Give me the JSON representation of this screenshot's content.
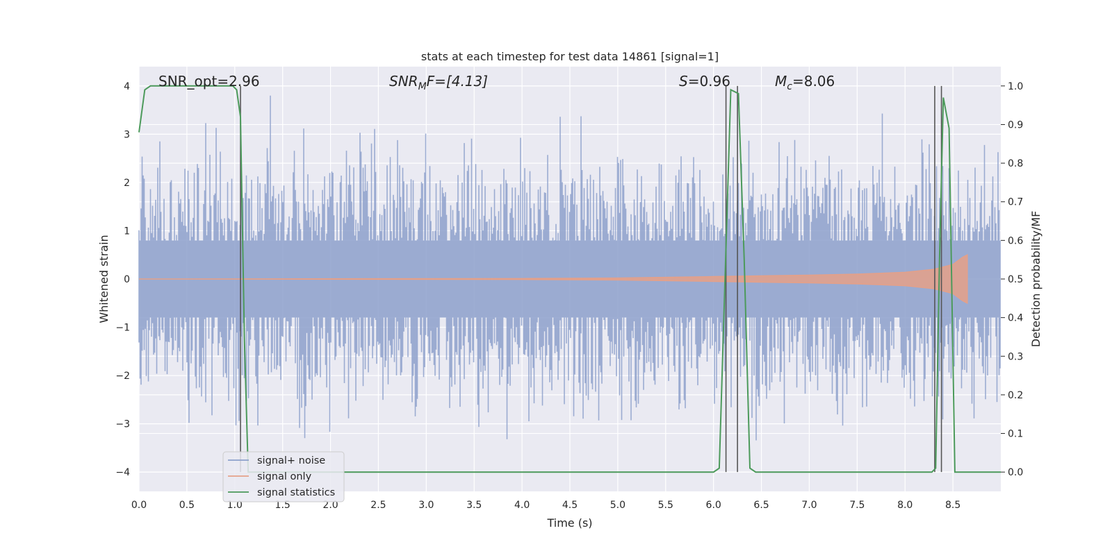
{
  "chart_data": {
    "type": "line",
    "title": "stats at each timestep for test data 14861 [signal=1]",
    "xlabel": "Time (s)",
    "ylabel_left": "Whitened strain",
    "ylabel_right": "Detection probability/MF",
    "xlim": [
      0.0,
      9.0
    ],
    "ylim_left": [
      -4.4,
      4.4
    ],
    "ylim_right": [
      -0.05,
      1.05
    ],
    "x_ticks": [
      0.0,
      0.5,
      1.0,
      1.5,
      2.0,
      2.5,
      3.0,
      3.5,
      4.0,
      4.5,
      5.0,
      5.5,
      6.0,
      6.5,
      7.0,
      7.5,
      8.0,
      8.5
    ],
    "x_tick_labels": [
      "0.0",
      "0.5",
      "1.0",
      "1.5",
      "2.0",
      "2.5",
      "3.0",
      "3.5",
      "4.0",
      "4.5",
      "5.0",
      "5.5",
      "6.0",
      "6.5",
      "7.0",
      "7.5",
      "8.0",
      "8.5"
    ],
    "y_left_ticks": [
      -4,
      -3,
      -2,
      -1,
      0,
      1,
      2,
      3,
      4
    ],
    "y_left_tick_labels": [
      "−4",
      "−3",
      "−2",
      "−1",
      "0",
      "1",
      "2",
      "3",
      "4"
    ],
    "y_right_ticks": [
      0.0,
      0.1,
      0.2,
      0.3,
      0.4,
      0.5,
      0.6,
      0.7,
      0.8,
      0.9,
      1.0
    ],
    "y_right_tick_labels": [
      "0.0",
      "0.1",
      "0.2",
      "0.3",
      "0.4",
      "0.5",
      "0.6",
      "0.7",
      "0.8",
      "0.9",
      "1.0"
    ],
    "grid": true,
    "legend_position": "lower-left",
    "annotations": {
      "snr_opt": "SNR_opt=2.96",
      "snr_mf_label": "SNR",
      "snr_mf_sub": "M",
      "snr_mf_rest": "F=[4.13]",
      "s_label": "S",
      "s_rest": "=0.96",
      "mc_label": "M",
      "mc_sub": "c",
      "mc_rest": "=8.06"
    },
    "series": [
      {
        "name": "signal+ noise",
        "color": "#8da0cb",
        "axis": "left",
        "description_x_range": [
          0.0,
          9.0
        ],
        "amplitude_envelope": [
          -4.0,
          3.8
        ]
      },
      {
        "name": "signal only",
        "color": "#e5a088",
        "axis": "left",
        "x_range": [
          0.0,
          8.65
        ],
        "envelope_points": [
          [
            0.0,
            0.0
          ],
          [
            4.0,
            0.01
          ],
          [
            5.0,
            0.02
          ],
          [
            6.0,
            0.05
          ],
          [
            7.0,
            0.08
          ],
          [
            7.5,
            0.1
          ],
          [
            8.0,
            0.14
          ],
          [
            8.3,
            0.2
          ],
          [
            8.5,
            0.3
          ],
          [
            8.6,
            0.45
          ],
          [
            8.65,
            0.5
          ]
        ]
      },
      {
        "name": "signal statistics",
        "color": "#4c9a5b",
        "axis": "right",
        "x": [
          0.0,
          0.06,
          0.12,
          0.2,
          0.4,
          0.6,
          0.8,
          0.98,
          1.02,
          1.06,
          1.1,
          1.14,
          1.2,
          2.0,
          4.0,
          6.0,
          6.06,
          6.12,
          6.18,
          6.26,
          6.32,
          6.38,
          6.44,
          7.0,
          8.0,
          8.28,
          8.32,
          8.36,
          8.4,
          8.46,
          8.52,
          8.7,
          9.0
        ],
        "y": [
          0.88,
          0.99,
          1.0,
          1.0,
          1.0,
          1.0,
          1.0,
          1.0,
          0.99,
          0.92,
          0.35,
          0.0,
          0.0,
          0.0,
          0.0,
          0.0,
          0.01,
          0.5,
          0.99,
          0.98,
          0.55,
          0.01,
          0.0,
          0.0,
          0.0,
          0.0,
          0.01,
          0.55,
          0.97,
          0.89,
          0.0,
          0.0,
          0.0
        ]
      }
    ],
    "vertical_lines": [
      1.06,
      6.13,
      6.25,
      8.31,
      8.38
    ],
    "vertical_line_color": "#555555"
  }
}
